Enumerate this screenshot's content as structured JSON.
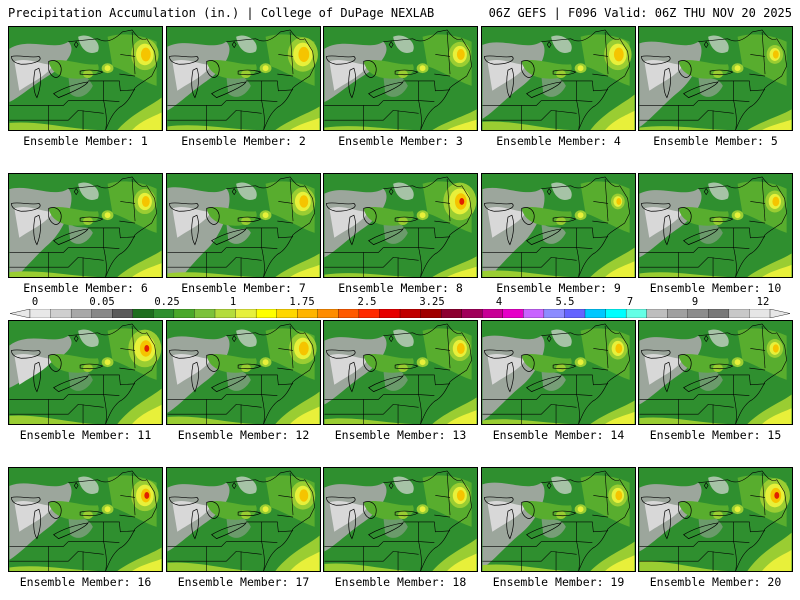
{
  "header": {
    "left_title": "Precipitation Accumulation (in.) | College of DuPage NEXLAB",
    "right_title": "06Z GEFS | F096 Valid: 06Z THU NOV 20 2025"
  },
  "panels": [
    {
      "label": "Ensemble Member: 1"
    },
    {
      "label": "Ensemble Member: 2"
    },
    {
      "label": "Ensemble Member: 3"
    },
    {
      "label": "Ensemble Member: 4"
    },
    {
      "label": "Ensemble Member: 5"
    },
    {
      "label": "Ensemble Member: 6"
    },
    {
      "label": "Ensemble Member: 7"
    },
    {
      "label": "Ensemble Member: 8"
    },
    {
      "label": "Ensemble Member: 9"
    },
    {
      "label": "Ensemble Member: 10"
    },
    {
      "label": "Ensemble Member: 11"
    },
    {
      "label": "Ensemble Member: 12"
    },
    {
      "label": "Ensemble Member: 13"
    },
    {
      "label": "Ensemble Member: 14"
    },
    {
      "label": "Ensemble Member: 15"
    },
    {
      "label": "Ensemble Member: 16"
    },
    {
      "label": "Ensemble Member: 17"
    },
    {
      "label": "Ensemble Member: 18"
    },
    {
      "label": "Ensemble Member: 19"
    },
    {
      "label": "Ensemble Member: 20"
    }
  ],
  "colorbar": {
    "labels": [
      "0",
      "0.05",
      "0.25",
      "1",
      "1.75",
      "2.5",
      "3.25",
      "4",
      "5.5",
      "7",
      "9",
      "12"
    ],
    "colors": [
      "#e8e8e8",
      "#cfcfcf",
      "#a8a8a8",
      "#888888",
      "#5a5a5a",
      "#1e6e1e",
      "#2f8f2f",
      "#4aa82a",
      "#7cc23a",
      "#b4dc3c",
      "#e6f03c",
      "#ffff00",
      "#ffd700",
      "#ffb400",
      "#ff8c00",
      "#ff5a00",
      "#ff2a00",
      "#e60000",
      "#c00000",
      "#a00000",
      "#8c0030",
      "#a0005a",
      "#c80096",
      "#e600c8",
      "#c864ff",
      "#8c8cff",
      "#6464ff",
      "#00c8ff",
      "#00ffff",
      "#64ffe6",
      "#bebebe",
      "#a0a0a0",
      "#8c8c8c",
      "#787878",
      "#c8c8c8",
      "#e6e6e6"
    ]
  },
  "map_colors": {
    "base_green": "#2f8f2f",
    "mid_green": "#58ad2e",
    "light_green": "#9acd32",
    "yellow": "#e8f03a",
    "orange": "#f5c400",
    "red": "#e02000",
    "gray_light": "#d8d8d8",
    "gray_mid": "#a8a8a8",
    "gray_dark": "#777777"
  }
}
